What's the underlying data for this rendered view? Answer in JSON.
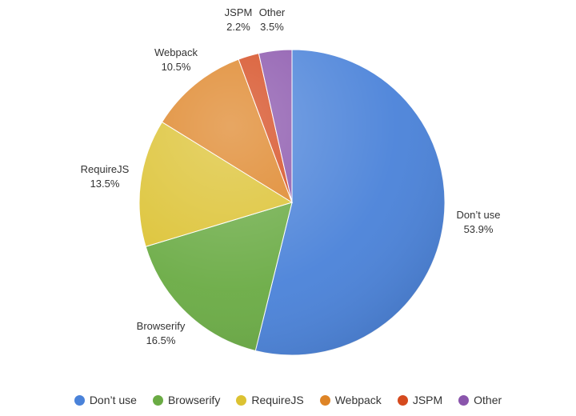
{
  "chart_data": {
    "type": "pie",
    "title": "",
    "categories": [
      "Don’t use",
      "Browserify",
      "RequireJS",
      "Webpack",
      "JSPM",
      "Other"
    ],
    "values": [
      53.9,
      16.5,
      13.5,
      10.5,
      2.2,
      3.5
    ],
    "value_labels": [
      "53.9%",
      "16.5%",
      "13.5%",
      "10.5%",
      "2.2%",
      "3.5%"
    ],
    "colors": [
      "#4a82d9",
      "#6aab44",
      "#dcc232",
      "#de8426",
      "#d54a1e",
      "#8a55ac"
    ],
    "start": "12 o'clock",
    "direction": "clockwise",
    "legend_position": "bottom"
  }
}
